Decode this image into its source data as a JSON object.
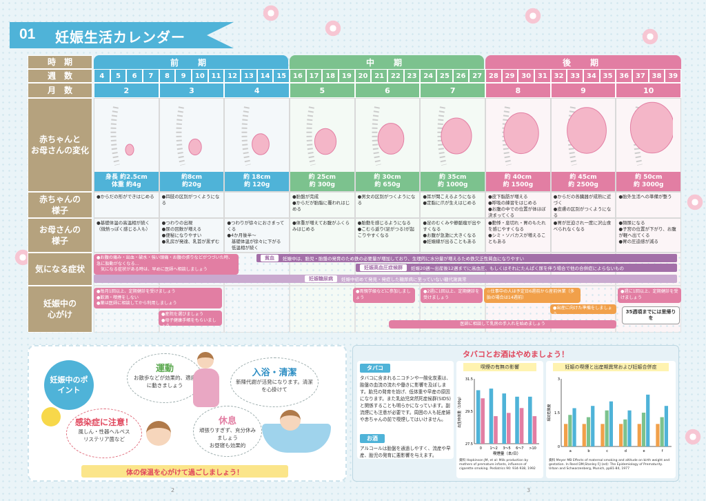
{
  "title": {
    "num": "01",
    "text": "妊娠生活カレンダー"
  },
  "rows": {
    "period": "時　期",
    "weeks": "週　数",
    "months": "月　数",
    "change": "赤ちゃんと\nお母さんの変化",
    "baby": "赤ちゃんの\n様子",
    "mother": "お母さんの\n様子",
    "symptoms": "気になる症状",
    "care": "妊娠中の\n心がけ"
  },
  "phases": [
    {
      "label": "前　期"
    },
    {
      "label": "中　期"
    },
    {
      "label": "後　期"
    }
  ],
  "weeks": [
    "4",
    "5",
    "6",
    "7",
    "8",
    "9",
    "10",
    "11",
    "12",
    "13",
    "14",
    "15",
    "16",
    "17",
    "18",
    "19",
    "20",
    "21",
    "22",
    "23",
    "24",
    "25",
    "26",
    "27",
    "28",
    "29",
    "30",
    "31",
    "32",
    "33",
    "34",
    "35",
    "36",
    "37",
    "38",
    "39"
  ],
  "months": [
    "2",
    "3",
    "4",
    "5",
    "6",
    "7",
    "8",
    "9",
    "10"
  ],
  "sizes": [
    [
      "身長 約2.5cm",
      "体重 約4g"
    ],
    [
      "約8cm",
      "約20g"
    ],
    [
      "約 18cm",
      "約 120g"
    ],
    [
      "約 25cm",
      "約 300g"
    ],
    [
      "約 30cm",
      "約 650g"
    ],
    [
      "約 35cm",
      "約 1000g"
    ],
    [
      "約 40cm",
      "約 1500g"
    ],
    [
      "約 45cm",
      "約 2500g"
    ],
    [
      "約 50cm",
      "約 3000g"
    ]
  ],
  "baby": [
    "●からだの形ができはじめる",
    "●四肢の区別がつくようになる",
    "",
    "●胎盤が完成\n●からだが胎脂に覆われはじめる",
    "●男女の区別がつくようになる",
    "●耳が聞こえるようになる\n●定脂に爪が生えはじめる",
    "●皮下脂肪が増える\n●呼吸の練習をはじめる\n●お腹の中での位置が体ほぼ決まってくる",
    "●からだの各臓器が成熟に近づく\n●皮膚の区別がつくようになる",
    "●胎外生活への準備が整う"
  ],
  "mother": [
    "●基礎体温の高温相が続く\n（微熱っぽく感じる人も）",
    "●つわりの出現\n●尿の回数が増える\n●便秘になりやすい\n●乳房が発達、乳首が黒ずむ",
    "●つわりが徐々におさまってくる\n●4か月後半〜\n　基礎体温が徐々に下がる\n　低温相が続く",
    "●体重が増えてお腹がふくらみはじめる",
    "●胎動を感じるようになる\n●こむら返り(足がつる)が起こりやすくなる",
    "●足のむくみや静脈瘤が出やすくなる\n●お腹が急激に大きくなる\n●妊娠線が出ることもある",
    "●動悸・息切れ・胃のもたれを感じやすくなる\n●シミ・ソバカスが増えることもある",
    "●胃が圧迫され一度に沢山食べられなくなる",
    "●頻尿になる\n●子宮の位置が下がり、お腹が軽へ出てくる\n●胃の圧迫感が減る"
  ],
  "symptom_note": "●お腹の痛み・出血・破水・強い頭痛・お腹の張りなどがつづいた時、急に胎動がなくなる…\n　気になる症状がある時は、早めに医師へ相談しましょう",
  "bars": [
    {
      "label": "貧血",
      "text": "妊娠中は、胎児・胎盤の発育のため鉄の必要量が増加しており、生理的に水分量が増えるため鉄欠乏性貧血になりやすい"
    },
    {
      "label": "妊娠高血圧症候群",
      "text": "妊娠20週〜出産後12週までに高血圧、もしくはそれにたんぱく尿を伴う場合で他の合併症によらないもの"
    },
    {
      "label": "妊娠糖尿病",
      "text": "妊娠中初めて発見・発症した糖尿病に至っていない糖代謝異常"
    }
  ],
  "care": {
    "c1": "●毎月1回以上、定期健診を受けましょう\n●飲酒・喫煙をしない\n●薬は医師に相談してから利用しましょう",
    "c2": "●産院を選びましょう\n●母子健康手帳をもらいましょう",
    "c3": "●両親学級などに参加しましょう",
    "c4": "●2週に1回以上、定期健診を受けましょう",
    "c5": "☆仕事中の人は予定日6週前から産前休業（多胎の場合は14週前）",
    "c6": "●出産に向けた準備をしましょう",
    "c7": "●週に1回以上、定期健診を受けましょう",
    "c8": "医師に相談して乳房の手入れを始めましょう",
    "badge": "35週頃までには里帰りを"
  },
  "points": {
    "main": "妊娠中のポイント",
    "exercise": {
      "title": "運動",
      "text": "お散歩などが効果的、適度に動きましょう"
    },
    "bath": {
      "title": "入浴・清潔",
      "text": "新陳代謝が活発になります。清潔を心掛けて"
    },
    "infection": {
      "title": "感染症に注意！",
      "text": "風しん・性器ヘルペス\nリステリア菌など"
    },
    "rest": {
      "title": "休息",
      "text": "頑張りすぎず、充分休みましょう\nお昼寝も効果的"
    },
    "footer": "体の保温を心がけて過ごしましょう！"
  },
  "tobacco": {
    "title": "タバコとお酒はやめましょう！",
    "tag1": "タバコ",
    "text1": "タバコに含まれるニコチンや一酸化炭素は、胎盤の血流の流れや働きに影響を及ぼします。胎児の発育を妨げ、低体重や早産の原因になります。また乳幼児突然死症候群(SIDS)と関係することも明らかになっています。副流煙にも注意が必要です。周囲の人も妊産婦や赤ちゃんの前で喫煙してはいけません。",
    "tag2": "お酒",
    "text2": "アルコールは胎盤を通過しやすく、流産や早産、胎児の発育に悪影響を与えます。",
    "chart1_title": "喫煙の有無の影響",
    "chart2_title": "妊娠の喫煙と出産期異常および妊娠合併症",
    "cite1": "資料 Hopkinson JM, et al: Milk production by mothers of premature infants, influence of cigarette smoking. Pediatrics 90: 934-938, 1992",
    "cite2": "資料 Meyer MB Effects of maternal smoking and altitude on birth weight and gestation. In Reed DM,Stanley FJ (ed): The Epidemiology of Prematurity. Urban and Schwarzenberg, Munich, pp81-84, 1977"
  },
  "chart_data": [
    {
      "type": "bar",
      "title": "喫煙の有無の影響",
      "xlabel": "喫煙量（本/日）",
      "ylabel": "出生時体重（100g）",
      "categories": [
        "0",
        "1〜2",
        "3〜5",
        "6〜7",
        ">10"
      ],
      "ylim": [
        27.5,
        31.5
      ],
      "series": [
        {
          "name": "",
          "values": [
            30.8,
            30.9,
            30.6,
            30.4,
            30.4
          ]
        },
        {
          "name": "",
          "values": [
            30.3,
            29.2,
            29.4,
            29.7,
            29.2
          ]
        }
      ]
    },
    {
      "type": "bar",
      "title": "妊娠の喫煙と出産期異常および妊娠合併症",
      "ylabel": "相対危険度",
      "categories": [
        "a",
        "b",
        "c",
        "d",
        "e",
        "f"
      ],
      "ylim": [
        0,
        3
      ],
      "series": [
        {
          "name": "",
          "values": [
            1.0,
            1.0,
            1.0,
            1.0,
            1.0,
            1.0
          ]
        },
        {
          "name": "",
          "values": [
            1.4,
            1.3,
            1.6,
            1.2,
            1.5,
            1.3
          ]
        },
        {
          "name": "",
          "values": [
            1.7,
            1.8,
            2.0,
            1.6,
            2.3,
            1.8
          ]
        }
      ]
    }
  ],
  "pages": [
    "2",
    "3"
  ]
}
